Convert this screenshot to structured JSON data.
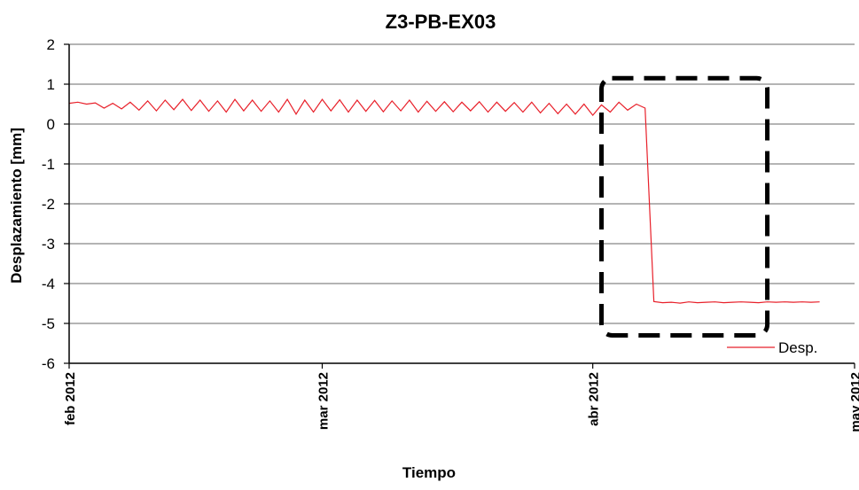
{
  "chart_data": {
    "type": "line",
    "title": "Z3-PB-EX03",
    "xlabel": "Tiempo",
    "ylabel": "Desplazamiento [mm]",
    "ylim": [
      -6,
      2
    ],
    "yticks": [
      2,
      1,
      0,
      -1,
      -2,
      -3,
      -4,
      -5,
      -6
    ],
    "xlim": [
      "2012-02-01",
      "2012-05-01"
    ],
    "xticks": [
      {
        "date": "2012-02-01",
        "label": "feb  2012"
      },
      {
        "date": "2012-03-01",
        "label": "mar  2012"
      },
      {
        "date": "2012-04-01",
        "label": "abr  2012"
      },
      {
        "date": "2012-05-01",
        "label": "may  2012"
      }
    ],
    "grid": "horizontal",
    "legend_position": "bottom-right",
    "colors": {
      "series": "#e8202a",
      "grid": "#878787",
      "box": "#000000"
    },
    "series": [
      {
        "name": "Desp.",
        "x": [
          "2012-02-01",
          "2012-02-02",
          "2012-02-03",
          "2012-02-04",
          "2012-02-05",
          "2012-02-06",
          "2012-02-07",
          "2012-02-08",
          "2012-02-09",
          "2012-02-10",
          "2012-02-11",
          "2012-02-12",
          "2012-02-13",
          "2012-02-14",
          "2012-02-15",
          "2012-02-16",
          "2012-02-17",
          "2012-02-18",
          "2012-02-19",
          "2012-02-20",
          "2012-02-21",
          "2012-02-22",
          "2012-02-23",
          "2012-02-24",
          "2012-02-25",
          "2012-02-26",
          "2012-02-27",
          "2012-02-28",
          "2012-02-29",
          "2012-03-01",
          "2012-03-02",
          "2012-03-03",
          "2012-03-04",
          "2012-03-05",
          "2012-03-06",
          "2012-03-07",
          "2012-03-08",
          "2012-03-09",
          "2012-03-10",
          "2012-03-11",
          "2012-03-12",
          "2012-03-13",
          "2012-03-14",
          "2012-03-15",
          "2012-03-16",
          "2012-03-17",
          "2012-03-18",
          "2012-03-19",
          "2012-03-20",
          "2012-03-21",
          "2012-03-22",
          "2012-03-23",
          "2012-03-24",
          "2012-03-25",
          "2012-03-26",
          "2012-03-27",
          "2012-03-28",
          "2012-03-29",
          "2012-03-30",
          "2012-03-31",
          "2012-04-01",
          "2012-04-02",
          "2012-04-03",
          "2012-04-04",
          "2012-04-05",
          "2012-04-06",
          "2012-04-07",
          "2012-04-08",
          "2012-04-09",
          "2012-04-10",
          "2012-04-11",
          "2012-04-12",
          "2012-04-13",
          "2012-04-14",
          "2012-04-15",
          "2012-04-16",
          "2012-04-17",
          "2012-04-18",
          "2012-04-19",
          "2012-04-20",
          "2012-04-21",
          "2012-04-22",
          "2012-04-23",
          "2012-04-24",
          "2012-04-25",
          "2012-04-26",
          "2012-04-27"
        ],
        "y": [
          0.52,
          0.55,
          0.5,
          0.53,
          0.4,
          0.52,
          0.38,
          0.55,
          0.35,
          0.58,
          0.33,
          0.6,
          0.36,
          0.62,
          0.34,
          0.6,
          0.32,
          0.58,
          0.3,
          0.62,
          0.33,
          0.6,
          0.32,
          0.58,
          0.3,
          0.62,
          0.25,
          0.6,
          0.3,
          0.62,
          0.33,
          0.61,
          0.3,
          0.6,
          0.32,
          0.59,
          0.31,
          0.58,
          0.33,
          0.6,
          0.3,
          0.57,
          0.32,
          0.56,
          0.31,
          0.55,
          0.33,
          0.56,
          0.3,
          0.55,
          0.32,
          0.54,
          0.3,
          0.55,
          0.28,
          0.52,
          0.26,
          0.5,
          0.25,
          0.5,
          0.22,
          0.48,
          0.3,
          0.55,
          0.35,
          0.5,
          0.4,
          -4.45,
          -4.48,
          -4.47,
          -4.49,
          -4.46,
          -4.48,
          -4.47,
          -4.46,
          -4.48,
          -4.47,
          -4.46,
          -4.47,
          -4.48,
          -4.46,
          -4.47,
          -4.46,
          -4.47,
          -4.46,
          -4.47,
          -4.46
        ]
      }
    ],
    "annotation": {
      "type": "dashed-rounded-box",
      "x_from": "2012-04-02",
      "x_to": "2012-04-21",
      "y_from": -5.3,
      "y_to": 1.15
    }
  }
}
